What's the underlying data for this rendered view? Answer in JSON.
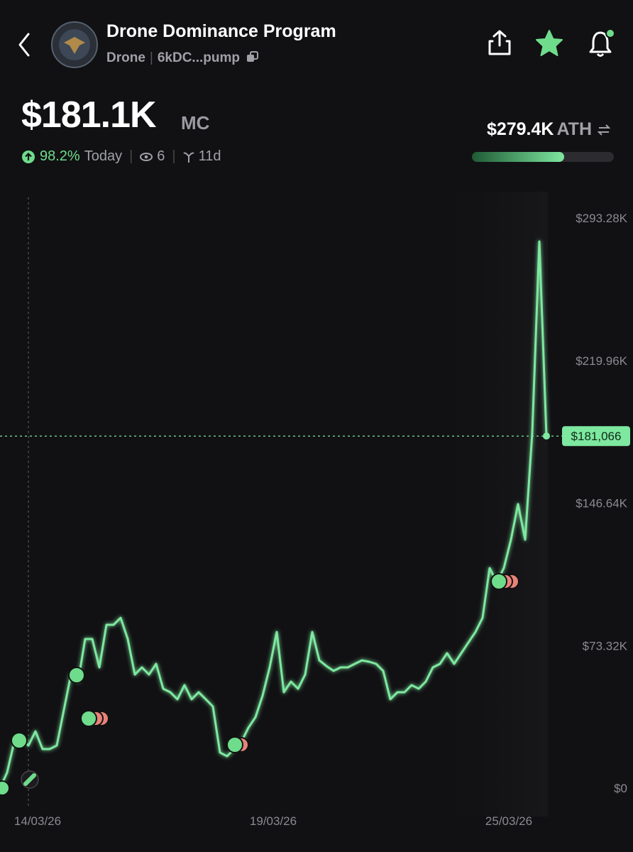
{
  "header": {
    "title": "Drone Dominance Program",
    "ticker": "Drone",
    "address": "6kDC...pump",
    "market_cap": "$181.1K",
    "market_cap_unit": "MC",
    "change": "98.2%",
    "change_period": "Today",
    "views": "6",
    "age": "11d",
    "ath": "$279.4K",
    "ath_label": "ATH"
  },
  "chart_data": {
    "type": "line",
    "series": [
      {
        "name": "Market cap",
        "color": "#7ee8a0",
        "values": [
          0,
          8.0,
          23.7,
          25.6,
          21.9,
          29.2,
          20.1,
          20.1,
          21.9,
          40.2,
          58.4,
          54.8,
          76.7,
          76.7,
          62.1,
          84.0,
          84.0,
          87.6,
          76.7,
          58.4,
          62.1,
          58.4,
          63.9,
          51.1,
          49.3,
          45.7,
          53.0,
          45.7,
          49.3,
          45.7,
          42.0,
          18.3,
          16.4,
          20.1,
          23.7,
          31.0,
          36.5,
          47.5,
          62.1,
          80.3,
          49.3,
          54.8,
          51.1,
          58.4,
          80.3,
          65.7,
          62.8,
          60.3,
          62.1,
          62.1,
          63.9,
          65.7,
          65.0,
          63.9,
          60.3,
          45.7,
          49.3,
          49.3,
          53.0,
          51.1,
          54.8,
          62.1,
          63.9,
          69.4,
          63.9,
          69.4,
          74.9,
          80.3,
          87.6,
          113.2,
          105.9,
          113.2,
          127.8,
          146.1,
          127.8,
          182.6,
          281.2,
          181.1
        ]
      }
    ],
    "xtick_labels": [
      "14/03/26",
      "19/03/26",
      "25/03/26"
    ],
    "ylim": [
      0,
      293.28
    ],
    "yticks": [
      {
        "value": 0,
        "label": "$0"
      },
      {
        "value": 73.32,
        "label": "$73.32K"
      },
      {
        "value": 146.64,
        "label": "$146.64K"
      },
      {
        "value": 219.96,
        "label": "$219.96K"
      },
      {
        "value": 293.28,
        "label": "$293.28K"
      }
    ],
    "current": {
      "value": 181.066,
      "label": "$181,066"
    }
  }
}
